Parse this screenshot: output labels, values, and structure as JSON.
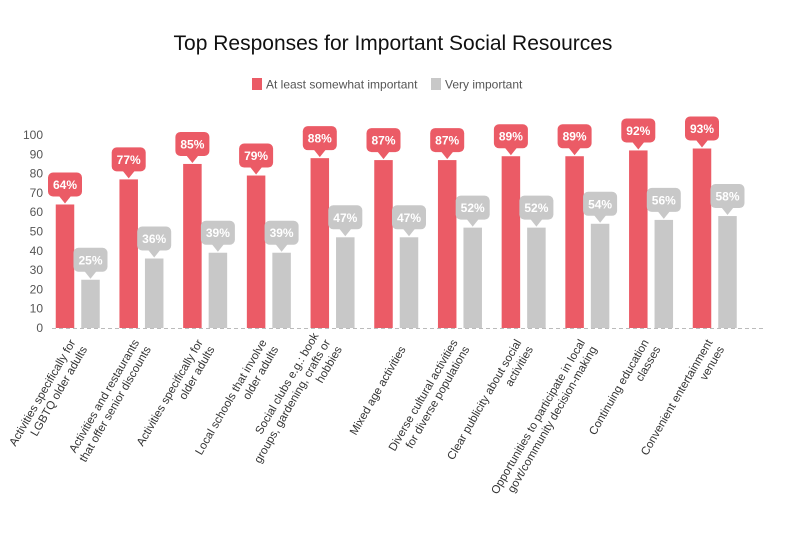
{
  "chart_data": {
    "type": "bar",
    "title": "Top Responses for Important Social Resources",
    "categories": [
      [
        "Activities specifically for",
        "LGBTQ older adults"
      ],
      [
        "Activities and restaurants",
        "that offer senior discounts"
      ],
      [
        "Activities specifically for",
        "older adults"
      ],
      [
        "Local schools that involve",
        "older adults"
      ],
      [
        "Social clubs e.g.: book",
        "groups, gardening, crafts or",
        "hobbies"
      ],
      [
        "Mixed age activities"
      ],
      [
        "Diverse cultural activities",
        "for diverse populations"
      ],
      [
        "Clear publicity about social",
        "activities"
      ],
      [
        "Opportunities to participate in local",
        "govt/community decision-making"
      ],
      [
        "Continuing education",
        "classes"
      ],
      [
        "Convenient entertainment",
        "venues"
      ]
    ],
    "series": [
      {
        "name": "At least somewhat important",
        "color": "#eb5b66",
        "values": [
          64,
          77,
          85,
          79,
          88,
          87,
          87,
          89,
          89,
          92,
          93
        ],
        "labels": [
          "64%",
          "77%",
          "85%",
          "79%",
          "88%",
          "87%",
          "87%",
          "89%",
          "89%",
          "92%",
          "93%"
        ]
      },
      {
        "name": "Very important",
        "color": "#c8c8c8",
        "values": [
          25,
          36,
          39,
          39,
          47,
          47,
          52,
          52,
          54,
          56,
          58
        ],
        "labels": [
          "25%",
          "36%",
          "39%",
          "39%",
          "47%",
          "47%",
          "52%",
          "52%",
          "54%",
          "56%",
          "58%"
        ]
      }
    ],
    "yticks": [
      "0",
      "10",
      "20",
      "30",
      "40",
      "50",
      "60",
      "70",
      "80",
      "90",
      "100"
    ],
    "ylim": [
      0,
      100
    ],
    "grid": false,
    "legend_position": "top-center"
  }
}
